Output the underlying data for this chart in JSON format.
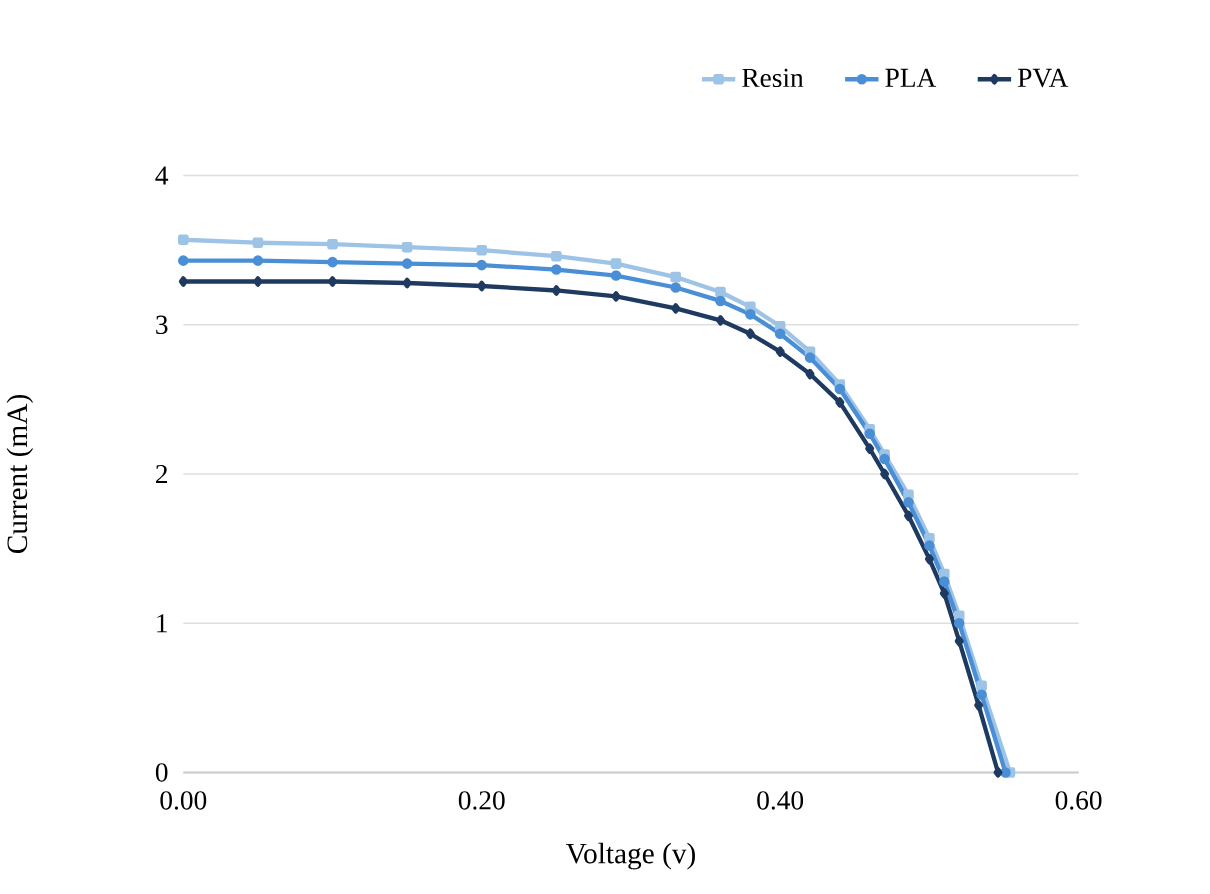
{
  "chart_data": {
    "type": "line",
    "xlabel": "Voltage (v)",
    "ylabel": "Current (mA)",
    "xlim": [
      0,
      0.6
    ],
    "ylim": [
      0,
      4
    ],
    "xticks": [
      {
        "value": 0,
        "label": "0.00"
      },
      {
        "value": 0.2,
        "label": "0.20"
      },
      {
        "value": 0.4,
        "label": "0.40"
      },
      {
        "value": 0.6,
        "label": "0.60"
      }
    ],
    "yticks": [
      0,
      1,
      2,
      3,
      4
    ],
    "grid": "y",
    "legend": "top right",
    "series": [
      {
        "name": "Resin",
        "color": "#9dc3e6",
        "marker": "square",
        "x": [
          0,
          0.05,
          0.1,
          0.15,
          0.2,
          0.25,
          0.29,
          0.33,
          0.36,
          0.38,
          0.4,
          0.42,
          0.44,
          0.46,
          0.47,
          0.486,
          0.5,
          0.51,
          0.52,
          0.535,
          0.554
        ],
        "values": [
          3.57,
          3.55,
          3.54,
          3.52,
          3.5,
          3.46,
          3.41,
          3.32,
          3.22,
          3.12,
          2.99,
          2.82,
          2.6,
          2.3,
          2.13,
          1.86,
          1.57,
          1.33,
          1.05,
          0.58,
          0
        ]
      },
      {
        "name": "PLA",
        "color": "#4a8fd6",
        "marker": "circle",
        "x": [
          0,
          0.05,
          0.1,
          0.15,
          0.2,
          0.25,
          0.29,
          0.33,
          0.36,
          0.38,
          0.4,
          0.42,
          0.44,
          0.46,
          0.47,
          0.486,
          0.5,
          0.51,
          0.52,
          0.535,
          0.551
        ],
        "values": [
          3.43,
          3.43,
          3.42,
          3.41,
          3.4,
          3.37,
          3.33,
          3.25,
          3.16,
          3.07,
          2.94,
          2.78,
          2.57,
          2.27,
          2.1,
          1.81,
          1.52,
          1.28,
          1.0,
          0.52,
          0
        ]
      },
      {
        "name": "PVA",
        "color": "#1f3a60",
        "marker": "diamond",
        "x": [
          0,
          0.05,
          0.1,
          0.15,
          0.2,
          0.25,
          0.29,
          0.33,
          0.36,
          0.38,
          0.4,
          0.42,
          0.44,
          0.46,
          0.47,
          0.486,
          0.5,
          0.51,
          0.52,
          0.533,
          0.546
        ],
        "values": [
          3.29,
          3.29,
          3.29,
          3.28,
          3.26,
          3.23,
          3.19,
          3.11,
          3.03,
          2.94,
          2.82,
          2.67,
          2.48,
          2.17,
          2.0,
          1.72,
          1.43,
          1.2,
          0.88,
          0.45,
          0
        ]
      }
    ]
  }
}
